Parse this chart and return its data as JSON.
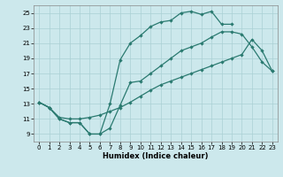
{
  "xlabel": "Humidex (Indice chaleur)",
  "bg_color": "#cce8ec",
  "grid_color": "#aad0d5",
  "line_color": "#2a7a70",
  "xlim": [
    -0.5,
    23.5
  ],
  "ylim": [
    8.0,
    26.0
  ],
  "xticks": [
    0,
    1,
    2,
    3,
    4,
    5,
    6,
    7,
    8,
    9,
    10,
    11,
    12,
    13,
    14,
    15,
    16,
    17,
    18,
    19,
    20,
    21,
    22,
    23
  ],
  "yticks": [
    9,
    11,
    13,
    15,
    17,
    19,
    21,
    23,
    25
  ],
  "line1_x": [
    0,
    1,
    2,
    3,
    4,
    5,
    6,
    7,
    8,
    9,
    10,
    11,
    12,
    13,
    14,
    15,
    16,
    17,
    18,
    19
  ],
  "line1_y": [
    13.2,
    12.5,
    11.0,
    10.5,
    10.5,
    9.0,
    9.0,
    13.0,
    18.8,
    21.0,
    22.0,
    23.2,
    23.8,
    24.0,
    25.0,
    25.2,
    24.8,
    25.2,
    23.5,
    23.5
  ],
  "line2_x": [
    0,
    1,
    2,
    3,
    4,
    5,
    6,
    7,
    8,
    9,
    10,
    11,
    12,
    13,
    14,
    15,
    16,
    17,
    18,
    19,
    20,
    21,
    22,
    23
  ],
  "line2_y": [
    13.2,
    12.5,
    11.2,
    11.0,
    11.0,
    11.2,
    11.5,
    12.0,
    12.5,
    13.2,
    14.0,
    14.8,
    15.5,
    16.0,
    16.5,
    17.0,
    17.5,
    18.0,
    18.5,
    19.0,
    19.5,
    21.5,
    20.0,
    17.3
  ],
  "line3_x": [
    0,
    1,
    2,
    3,
    4,
    5,
    6,
    7,
    8,
    9,
    10,
    11,
    12,
    13,
    14,
    15,
    16,
    17,
    18,
    19,
    20,
    21,
    22,
    23
  ],
  "line3_y": [
    13.2,
    12.5,
    11.0,
    10.5,
    10.5,
    9.0,
    9.0,
    9.8,
    12.8,
    15.8,
    16.0,
    17.0,
    18.0,
    19.0,
    20.0,
    20.5,
    21.0,
    21.8,
    22.5,
    22.5,
    22.2,
    20.5,
    18.5,
    17.3
  ]
}
